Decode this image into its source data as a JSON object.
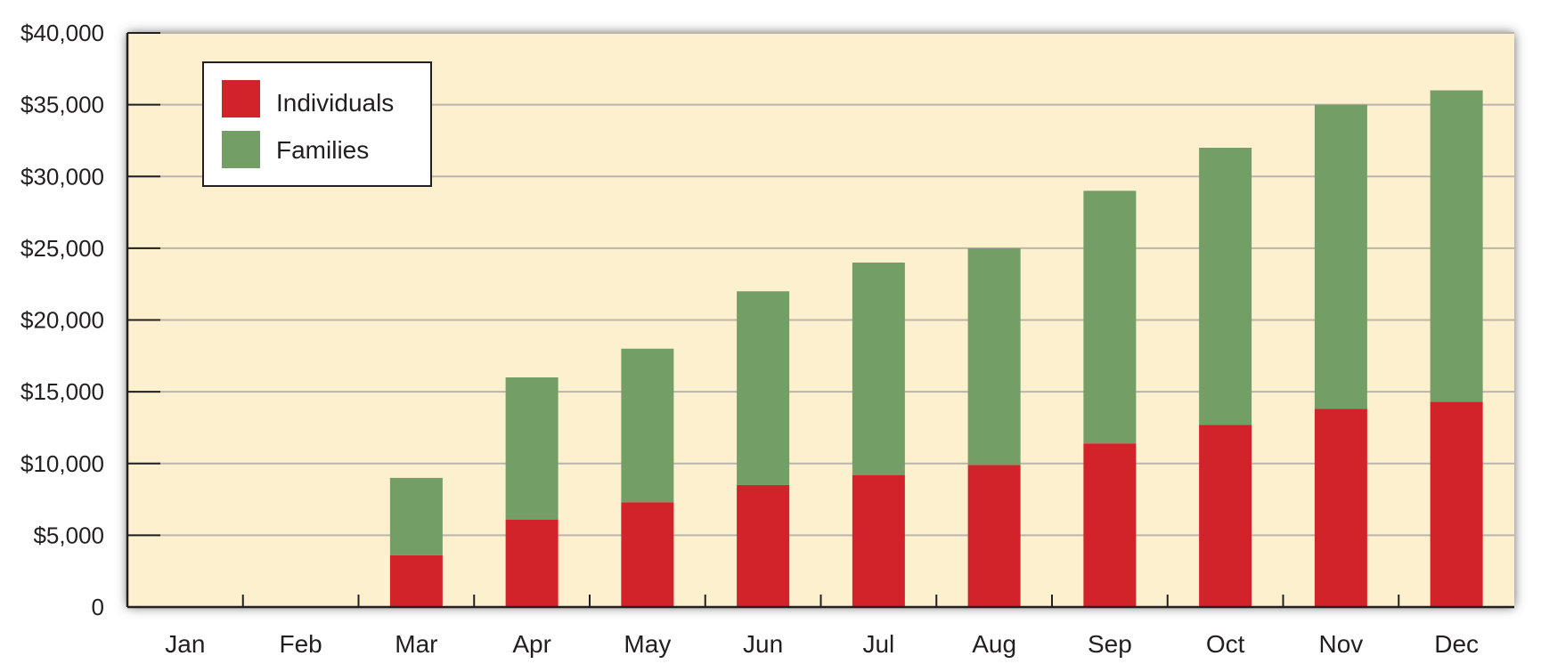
{
  "chart_data": {
    "type": "bar",
    "stacked": true,
    "categories": [
      "Jan",
      "Feb",
      "Mar",
      "Apr",
      "May",
      "Jun",
      "Jul",
      "Aug",
      "Sep",
      "Oct",
      "Nov",
      "Dec"
    ],
    "series": [
      {
        "name": "Individuals",
        "color": "#d2232a",
        "values": [
          0,
          0,
          3600,
          6100,
          7300,
          8500,
          9200,
          9900,
          11400,
          12700,
          13800,
          14300
        ]
      },
      {
        "name": "Families",
        "color": "#739e66",
        "values": [
          0,
          0,
          5400,
          9900,
          10700,
          13500,
          14800,
          15100,
          17600,
          19300,
          21200,
          21700
        ]
      }
    ],
    "totals": [
      0,
      0,
      9000,
      16000,
      18000,
      22000,
      24000,
      25000,
      29000,
      32000,
      35000,
      36000
    ],
    "ylim": [
      0,
      40000
    ],
    "yticks": [
      {
        "value": 0,
        "label": "0"
      },
      {
        "value": 5000,
        "label": "$5,000"
      },
      {
        "value": 10000,
        "label": "$10,000"
      },
      {
        "value": 15000,
        "label": "$15,000"
      },
      {
        "value": 20000,
        "label": "$20,000"
      },
      {
        "value": 25000,
        "label": "$25,000"
      },
      {
        "value": 30000,
        "label": "$30,000"
      },
      {
        "value": 35000,
        "label": "$35,000"
      },
      {
        "value": 40000,
        "label": "$40,000"
      }
    ],
    "grid": true,
    "legend_position": "top-left",
    "background_color": "#fdf0cf",
    "grid_color": "#b9b5ad"
  }
}
